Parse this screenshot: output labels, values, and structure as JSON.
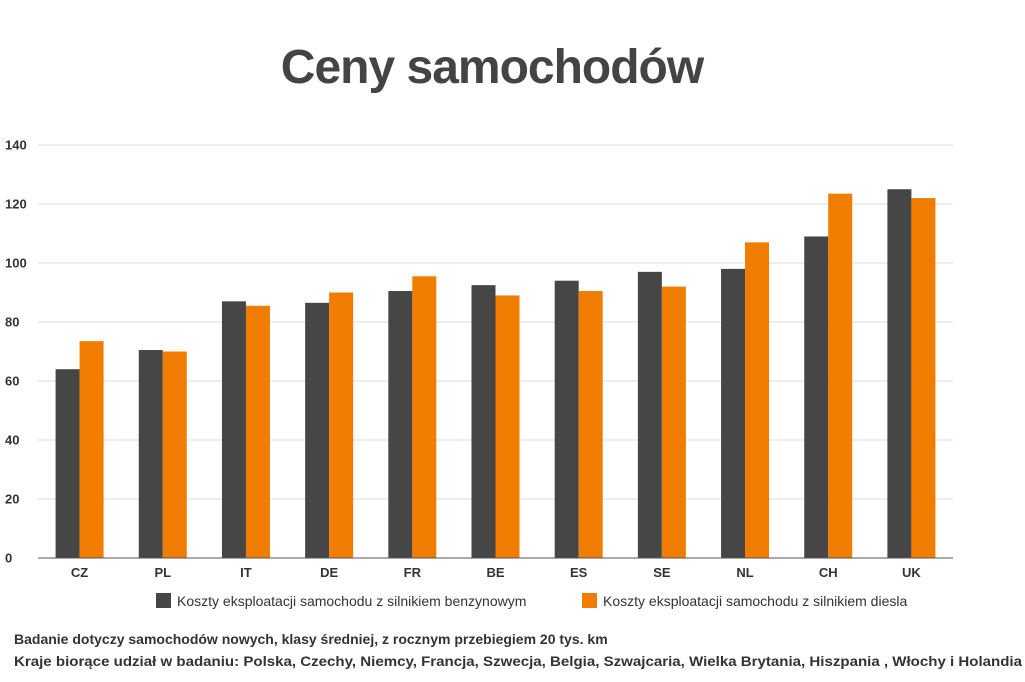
{
  "chart_data": {
    "type": "bar",
    "title": "Ceny samochodów",
    "categories": [
      "CZ",
      "PL",
      "IT",
      "DE",
      "FR",
      "BE",
      "ES",
      "SE",
      "NL",
      "CH",
      "UK"
    ],
    "series": [
      {
        "name": "Koszty eksploatacji samochodu z silnikiem benzynowym",
        "color": "#464646",
        "values": [
          64,
          70.5,
          87,
          86.5,
          90.5,
          92.5,
          94,
          97,
          98,
          109,
          125
        ]
      },
      {
        "name": "Koszty eksploatacji samochodu z silnikiem diesla",
        "color": "#f07c00",
        "values": [
          73.5,
          70,
          85.5,
          90,
          95.5,
          89,
          90.5,
          92,
          107,
          123.5,
          122
        ]
      }
    ],
    "yticks": [
      0,
      20,
      40,
      60,
      80,
      100,
      120,
      140
    ],
    "ylim": [
      0,
      140
    ],
    "grid": true,
    "legend_position": "bottom",
    "notes": [
      "Badanie dotyczy samochodów nowych, klasy średniej, z rocznym przebiegiem 20 tys. km",
      "Kraje biorące udział w badaniu: Polska, Czechy, Niemcy, Francja, Szwecja, Belgia, Szwajcaria, Wielka Brytania, Hiszpania , Włochy i Holandia"
    ]
  }
}
